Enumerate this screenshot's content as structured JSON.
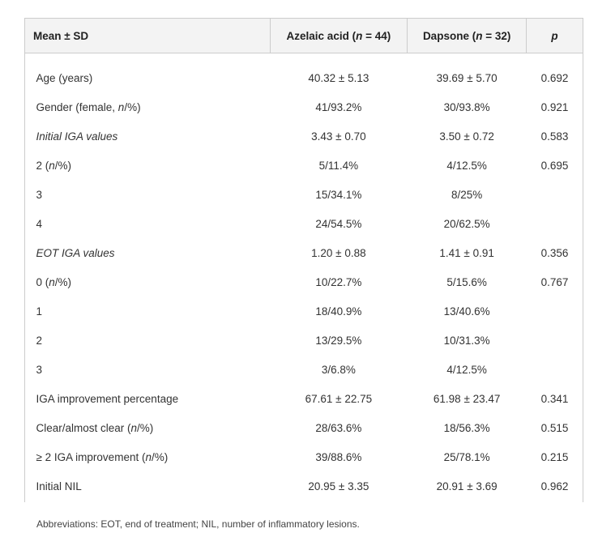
{
  "table": {
    "header": [
      [
        "Mean ± SD"
      ],
      [
        "Azelaic acid (",
        "n",
        " = 44)"
      ],
      [
        "Dapsone (",
        "n",
        " = 32)"
      ],
      [
        "p"
      ]
    ],
    "rows": [
      {
        "label": [
          "Age (years)"
        ],
        "values": [
          "40.32 ± 5.13",
          "39.69 ± 5.70",
          "0.692"
        ]
      },
      {
        "label": [
          "Gender (female, ",
          "n",
          "/%)"
        ],
        "values": [
          "41/93.2%",
          "30/93.8%",
          "0.921"
        ]
      },
      {
        "label": [
          "Initial IGA values"
        ],
        "values": [
          "3.43 ± 0.70",
          "3.50 ± 0.72",
          "0.583"
        ]
      },
      {
        "label": [
          "2 (",
          "n",
          "/%)"
        ],
        "values": [
          "5/11.4%",
          "4/12.5%",
          "0.695"
        ]
      },
      {
        "label": [
          "3"
        ],
        "values": [
          "15/34.1%",
          "8/25%"
        ]
      },
      {
        "label": [
          "4"
        ],
        "values": [
          "24/54.5%",
          "20/62.5%"
        ]
      },
      {
        "label": [
          "EOT IGA values"
        ],
        "values": [
          "1.20 ± 0.88",
          "1.41 ± 0.91",
          "0.356"
        ]
      },
      {
        "label": [
          "0 (",
          "n",
          "/%)"
        ],
        "values": [
          "10/22.7%",
          "5/15.6%",
          "0.767"
        ]
      },
      {
        "label": [
          "1"
        ],
        "values": [
          "18/40.9%",
          "13/40.6%"
        ]
      },
      {
        "label": [
          "2"
        ],
        "values": [
          "13/29.5%",
          "10/31.3%"
        ]
      },
      {
        "label": [
          "3"
        ],
        "values": [
          "3/6.8%",
          "4/12.5%"
        ]
      },
      {
        "label": [
          "IGA improvement percentage"
        ],
        "values": [
          "67.61 ± 22.75",
          "61.98 ± 23.47",
          "0.341"
        ]
      },
      {
        "label": [
          "Clear/almost clear (",
          "n",
          "/%)"
        ],
        "values": [
          "28/63.6%",
          "18/56.3%",
          "0.515"
        ]
      },
      {
        "label": [
          "≥ 2 IGA improvement (",
          "n",
          "/%)"
        ],
        "values": [
          "39/88.6%",
          "25/78.1%",
          "0.215"
        ]
      },
      {
        "label": [
          "Initial NIL"
        ],
        "values": [
          "20.95 ± 3.35",
          "20.91 ± 3.69",
          "0.962"
        ]
      }
    ],
    "footnote": "Abbreviations: EOT, end of treatment; NIL, number of inflammatory lesions."
  }
}
